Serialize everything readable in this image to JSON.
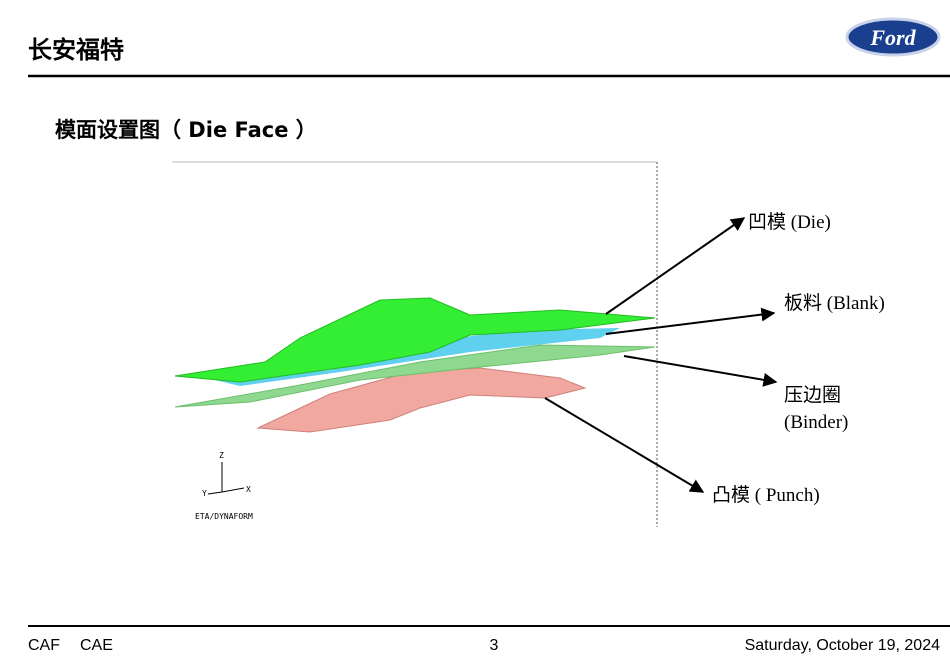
{
  "header": {
    "title": "长安福特",
    "logo": "Ford"
  },
  "slide": {
    "title": "模面设置图（ Die Face ）",
    "labels": {
      "die": "凹模 (Die)",
      "blank": "板料 (Blank)",
      "binder": [
        "压边圈",
        "(Binder)"
      ],
      "punch": "凸模 ( Punch)"
    },
    "axes": {
      "z": "Z",
      "y": "Y",
      "x": "X"
    },
    "software": "ETA/DYNAFORM"
  },
  "footer": {
    "left": [
      "CAF",
      "CAE"
    ],
    "page": 3,
    "date": "Saturday, October 19, 2024"
  }
}
